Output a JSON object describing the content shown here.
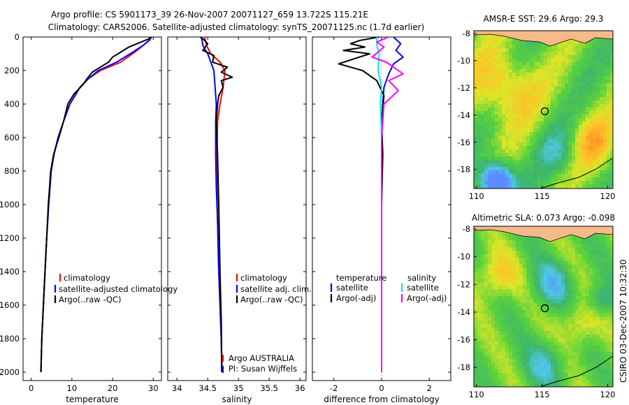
{
  "titles": {
    "line1": "Argo profile: CS 5901173_39 26-Nov-2007 20071127_659 13.722S 115.21E",
    "line2": "Climatology: CARS2006. Satellite-adjusted climatology: synTS_20071125.nc (1.7d earlier)"
  },
  "side_text": "CSIRO 03-Dec-2007 10:32:30",
  "colors": {
    "climatology": "#ff0000",
    "satellite": "#0000ff",
    "argo": "#000000",
    "satellite_sal": "#00e5ee",
    "argo_sal": "#ff00ff"
  },
  "chart_data": [
    {
      "type": "line",
      "name": "temperature-profile",
      "xlabel": "temperature",
      "ylabel": "",
      "xlim": [
        -2,
        32
      ],
      "ylim": [
        2050,
        0
      ],
      "xticks": [
        "0",
        "10",
        "20",
        "30"
      ],
      "xtick_values": [
        0,
        10,
        20,
        30
      ],
      "yticks": [
        "0",
        "200",
        "400",
        "600",
        "800",
        "1000",
        "1200",
        "1400",
        "1600",
        "1800",
        "2000"
      ],
      "ytick_values": [
        0,
        200,
        400,
        600,
        800,
        1000,
        1200,
        1400,
        1600,
        1800,
        2000
      ],
      "legend": [
        "climatology",
        "satellite-adjusted climatology",
        "Argo(..raw -QC)"
      ],
      "series": [
        {
          "name": "climatology",
          "color": "#ff0000",
          "x": [
            29.5,
            29,
            28,
            26,
            22,
            17,
            14,
            12,
            9.5,
            8,
            6.6,
            5.6,
            4.9,
            4.3,
            3.8,
            3.4,
            3.0,
            2.6,
            2.4
          ],
          "y": [
            0,
            20,
            40,
            80,
            150,
            200,
            250,
            300,
            400,
            500,
            600,
            700,
            800,
            1000,
            1200,
            1400,
            1600,
            1800,
            2000
          ]
        },
        {
          "name": "satellite",
          "color": "#0000ff",
          "x": [
            29.6,
            29,
            27.5,
            25,
            21,
            16.5,
            14,
            12,
            9.5,
            8,
            6.6,
            5.6,
            4.9,
            4.3,
            3.8,
            3.4,
            3.0,
            2.6,
            2.4
          ],
          "y": [
            0,
            20,
            50,
            90,
            150,
            200,
            250,
            300,
            400,
            500,
            600,
            700,
            800,
            1000,
            1200,
            1400,
            1600,
            1800,
            2000
          ]
        },
        {
          "name": "Argo",
          "color": "#000000",
          "x": [
            29.3,
            29,
            27,
            24,
            22,
            20,
            19,
            17,
            15,
            14,
            12.5,
            10.5,
            9,
            8,
            6.8,
            5.5,
            4.8,
            4.2,
            3.8,
            3.4,
            3.0,
            2.6,
            2.4
          ],
          "y": [
            0,
            10,
            30,
            60,
            90,
            120,
            150,
            180,
            210,
            240,
            290,
            340,
            400,
            500,
            600,
            700,
            800,
            1000,
            1200,
            1400,
            1600,
            1800,
            2000
          ]
        }
      ]
    },
    {
      "type": "line",
      "name": "salinity-profile",
      "xlabel": "salinity",
      "xlim": [
        33.85,
        36.1
      ],
      "ylim": [
        2050,
        0
      ],
      "xticks": [
        "34",
        "34.5",
        "35",
        "35.5",
        "36"
      ],
      "xtick_values": [
        34,
        34.5,
        35,
        35.5,
        36
      ],
      "legend": [
        "climatology",
        "satellite adj. clim.",
        "Argo(..raw -QC)"
      ],
      "annotations": [
        "Argo AUSTRALIA",
        "PI: Susan Wijffels"
      ],
      "series": [
        {
          "name": "climatology",
          "color": "#ff0000",
          "x": [
            34.45,
            34.48,
            34.55,
            34.7,
            34.78,
            34.75,
            34.7,
            34.66,
            34.65,
            34.65,
            34.66,
            34.68,
            34.7,
            34.72,
            34.73
          ],
          "y": [
            0,
            50,
            100,
            150,
            200,
            300,
            400,
            500,
            700,
            900,
            1100,
            1400,
            1600,
            1800,
            2000
          ]
        },
        {
          "name": "satellite",
          "color": "#0000ff",
          "x": [
            34.4,
            34.42,
            34.5,
            34.55,
            34.6,
            34.62,
            34.64,
            34.63,
            34.63,
            34.64,
            34.66,
            34.68,
            34.7,
            34.72,
            34.73
          ],
          "y": [
            0,
            50,
            100,
            150,
            200,
            300,
            400,
            500,
            700,
            900,
            1100,
            1400,
            1600,
            1800,
            2000
          ]
        },
        {
          "name": "Argo",
          "color": "#000000",
          "x": [
            34.38,
            34.45,
            34.5,
            34.42,
            34.6,
            34.58,
            34.82,
            34.72,
            34.9,
            34.72,
            34.75,
            34.68,
            34.66,
            34.64,
            34.66,
            34.68,
            34.7,
            34.72,
            34.73
          ],
          "y": [
            0,
            20,
            40,
            80,
            110,
            150,
            180,
            210,
            240,
            260,
            300,
            350,
            400,
            500,
            700,
            1000,
            1400,
            1700,
            2000
          ]
        }
      ]
    },
    {
      "type": "line",
      "name": "difference-profile",
      "xlabel": "difference from climatology",
      "xlim": [
        -2.9,
        2.9
      ],
      "ylim": [
        2050,
        0
      ],
      "xticks": [
        "-2",
        "0",
        "2"
      ],
      "xtick_values": [
        -2,
        0,
        2
      ],
      "legend_temperature_title": "temperature",
      "legend_salinity_title": "salinity",
      "legend": [
        "satellite",
        "Argo(-adj)",
        "satellite",
        "Argo(-adj)"
      ],
      "series": [
        {
          "name": "temp-satellite",
          "color": "#0000ff",
          "x": [
            0.5,
            0.8,
            0.6,
            0.9,
            0.5,
            0.3,
            0.1,
            0.05,
            0.0,
            0.0,
            0.0
          ],
          "y": [
            0,
            40,
            80,
            120,
            160,
            220,
            300,
            400,
            600,
            1000,
            2000
          ]
        },
        {
          "name": "temp-Argo",
          "color": "#000000",
          "x": [
            -0.1,
            -0.9,
            -1.3,
            -0.7,
            -1.6,
            -0.5,
            -1.8,
            -0.8,
            -0.2,
            0.1,
            0.0,
            0.05,
            0.0,
            0.0
          ],
          "y": [
            0,
            20,
            40,
            60,
            80,
            100,
            160,
            200,
            260,
            350,
            500,
            700,
            1000,
            2000
          ]
        },
        {
          "name": "sal-satellite",
          "color": "#00e5ee",
          "x": [
            -0.2,
            -0.2,
            -0.1,
            -0.15,
            0.0,
            -0.05,
            0.0,
            0.0,
            0.0,
            0.0
          ],
          "y": [
            0,
            50,
            100,
            200,
            300,
            400,
            600,
            1000,
            1500,
            2000
          ]
        },
        {
          "name": "sal-Argo",
          "color": "#ff00ff",
          "x": [
            0.3,
            -0.2,
            0.1,
            -0.4,
            0.2,
            0.5,
            0.9,
            0.3,
            0.7,
            0.1,
            0.0,
            0.0,
            0.0
          ],
          "y": [
            0,
            30,
            60,
            120,
            150,
            180,
            220,
            260,
            320,
            400,
            600,
            1000,
            2000
          ]
        }
      ]
    },
    {
      "type": "heatmap",
      "name": "sst-map",
      "title": "AMSR-E SST: 29.6  Argo: 29.3",
      "xlim": [
        109.8,
        120.4
      ],
      "ylim": [
        -19.4,
        -7.8
      ],
      "xticks": [
        "110",
        "115",
        "120"
      ],
      "xtick_values": [
        110,
        115,
        120
      ],
      "yticks": [
        "-8",
        "-10",
        "-12",
        "-14",
        "-16",
        "-18"
      ],
      "ytick_values": [
        -8,
        -10,
        -12,
        -14,
        -16,
        -18
      ],
      "marker": {
        "lon": 115.21,
        "lat": -13.722
      }
    },
    {
      "type": "heatmap",
      "name": "sla-map",
      "title": "Altimetric SLA: 0.073  Argo: -0.098",
      "xlim": [
        109.8,
        120.4
      ],
      "ylim": [
        -19.4,
        -7.8
      ],
      "xticks": [
        "110",
        "115",
        "120"
      ],
      "xtick_values": [
        110,
        115,
        120
      ],
      "yticks": [
        "-8",
        "-10",
        "-12",
        "-14",
        "-16",
        "-18"
      ],
      "ytick_values": [
        -8,
        -10,
        -12,
        -14,
        -16,
        -18
      ],
      "marker": {
        "lon": 115.21,
        "lat": -13.722
      }
    }
  ]
}
